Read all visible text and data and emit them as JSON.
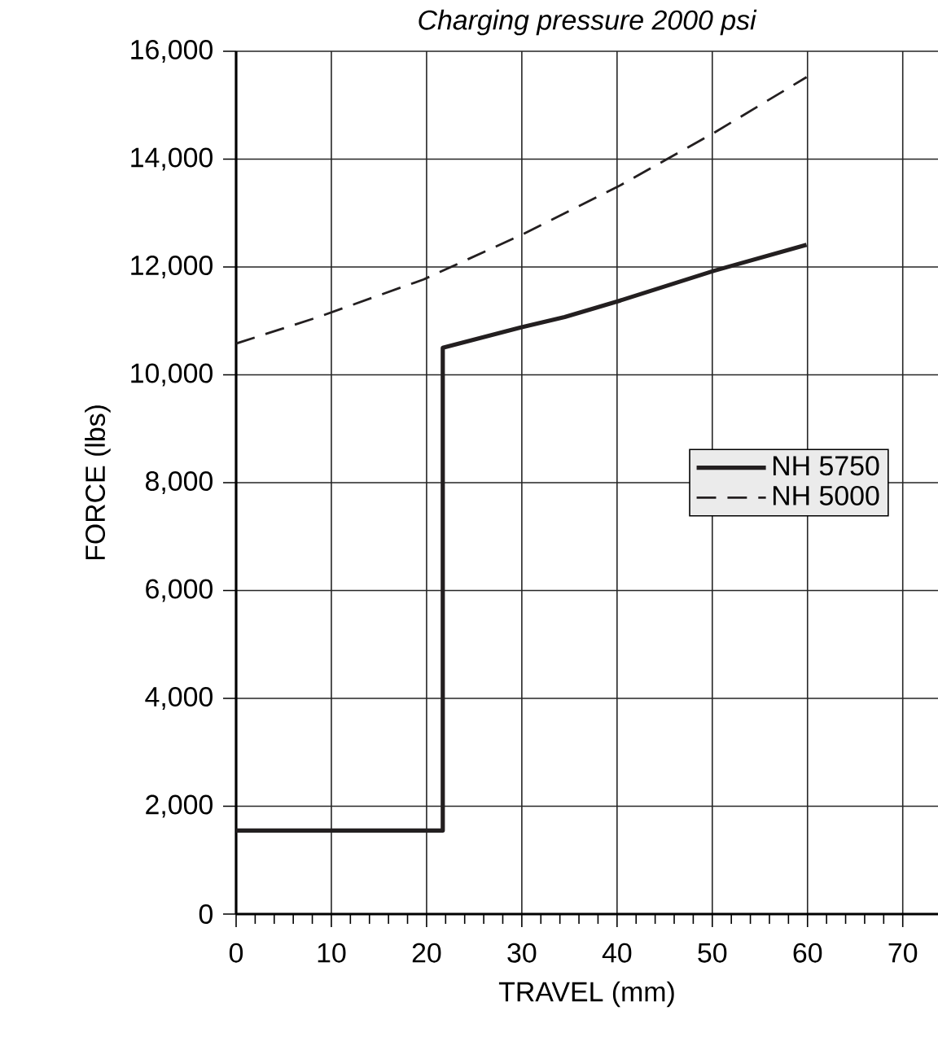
{
  "chart_data": {
    "type": "line",
    "title": "*Charging pressure 2000 psi*",
    "xlabel": "TRAVEL (mm)",
    "ylabel": "FORCE (lbs)",
    "xlim": [
      0,
      73.7
    ],
    "xticks": [
      0,
      10,
      20,
      30,
      40,
      50,
      60,
      70
    ],
    "ylim": [
      0,
      16000
    ],
    "yticks": [
      0,
      {
        "value": 2000,
        "label": "2,000"
      },
      {
        "value": 4000,
        "label": "4,000"
      },
      {
        "value": 6000,
        "label": "6,000"
      },
      {
        "value": 8000,
        "label": "8,000"
      },
      {
        "value": 10000,
        "label": "10,000"
      },
      {
        "value": 12000,
        "label": "12,000"
      },
      {
        "value": 14000,
        "label": "14,000"
      },
      {
        "value": 16000,
        "label": "16,000"
      }
    ],
    "grid": true,
    "legend": "right",
    "marker": "none",
    "series": [
      {
        "name": "NH 5750",
        "color": "#231f20",
        "line_style": "solid",
        "x": [
          0,
          21.7,
          21.7,
          29.9,
          34.5,
          40.2,
          50.2,
          59.9
        ],
        "values": [
          1550,
          1550,
          10500,
          10880,
          11070,
          11370,
          11930,
          12410
        ]
      },
      {
        "name": "NH 5000",
        "color": "#231f20",
        "line_style": "dashed",
        "x": [
          0,
          8.6,
          19.7,
          29.9,
          40.2,
          50.2,
          59.9
        ],
        "values": [
          10580,
          11070,
          11770,
          12590,
          13500,
          14490,
          15520
        ]
      }
    ]
  }
}
